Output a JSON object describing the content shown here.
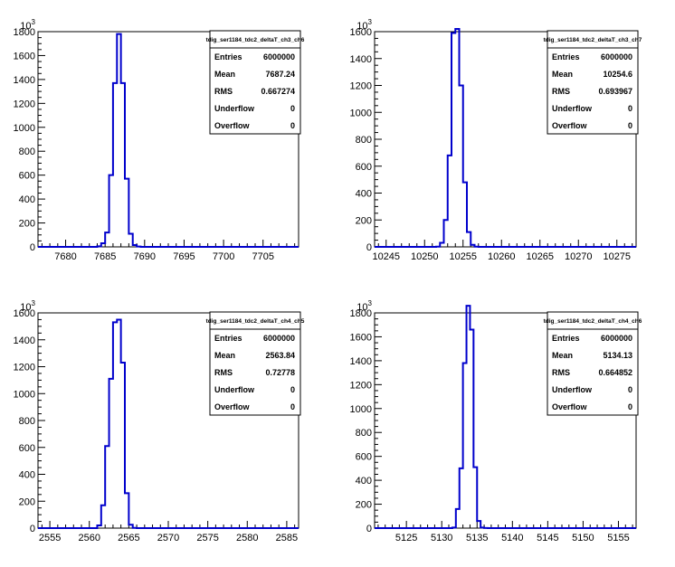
{
  "chart_data": [
    {
      "type": "bar",
      "title": "tdig_ser1184_tdc2_deltaT_ch3_ch6",
      "exponent_label": "10",
      "exponent_power": "3",
      "xlim": [
        7676.5,
        7709.5
      ],
      "ylim": [
        0,
        1800
      ],
      "x_ticks": [
        7680,
        7685,
        7690,
        7695,
        7700,
        7705
      ],
      "y_ticks": [
        0,
        200,
        400,
        600,
        800,
        1000,
        1200,
        1400,
        1600,
        1800
      ],
      "bin_edges": [
        7683.5,
        7684,
        7684.5,
        7685,
        7685.5,
        7686,
        7686.5,
        7687,
        7687.5,
        7688,
        7688.5,
        7689,
        7689.5,
        7690
      ],
      "values": [
        0,
        5,
        30,
        120,
        600,
        1370,
        1780,
        1370,
        570,
        110,
        15,
        3,
        0
      ],
      "stats": [
        {
          "label": "Entries",
          "value": "6000000"
        },
        {
          "label": "Mean",
          "value": "7687.24"
        },
        {
          "label": "RMS",
          "value": "0.667274"
        },
        {
          "label": "Underflow",
          "value": "0"
        },
        {
          "label": "Overflow",
          "value": "0"
        }
      ],
      "line_color": "#0000cc"
    },
    {
      "type": "bar",
      "title": "tdig_ser1184_tdc2_deltaT_ch3_ch7",
      "exponent_label": "10",
      "exponent_power": "3",
      "xlim": [
        10243.5,
        10277.5
      ],
      "ylim": [
        0,
        1600
      ],
      "x_ticks": [
        10245,
        10250,
        10255,
        10260,
        10265,
        10270,
        10275
      ],
      "y_ticks": [
        0,
        200,
        400,
        600,
        800,
        1000,
        1200,
        1400,
        1600
      ],
      "bin_edges": [
        10251.5,
        10252,
        10252.5,
        10253,
        10253.5,
        10254,
        10254.5,
        10255,
        10255.5,
        10256,
        10256.5,
        10257
      ],
      "values": [
        2,
        30,
        200,
        680,
        1590,
        1620,
        1200,
        480,
        110,
        15,
        2
      ],
      "stats": [
        {
          "label": "Entries",
          "value": "6000000"
        },
        {
          "label": "Mean",
          "value": "10254.6"
        },
        {
          "label": "RMS",
          "value": "0.693967"
        },
        {
          "label": "Underflow",
          "value": "0"
        },
        {
          "label": "Overflow",
          "value": "0"
        }
      ],
      "line_color": "#0000cc"
    },
    {
      "type": "bar",
      "title": "tdig_ser1184_tdc2_deltaT_ch4_ch5",
      "exponent_label": "10",
      "exponent_power": "3",
      "xlim": [
        2553.5,
        2586.5
      ],
      "ylim": [
        0,
        1600
      ],
      "x_ticks": [
        2555,
        2560,
        2565,
        2570,
        2575,
        2580,
        2585
      ],
      "y_ticks": [
        0,
        200,
        400,
        600,
        800,
        1000,
        1200,
        1400,
        1600
      ],
      "bin_edges": [
        2561,
        2561.5,
        2562,
        2562.5,
        2563,
        2563.5,
        2564,
        2564.5,
        2565,
        2565.5,
        2566
      ],
      "values": [
        20,
        170,
        610,
        1110,
        1530,
        1550,
        1230,
        260,
        25,
        2
      ],
      "stats": [
        {
          "label": "Entries",
          "value": "6000000"
        },
        {
          "label": "Mean",
          "value": "2563.84"
        },
        {
          "label": "RMS",
          "value": "0.72778"
        },
        {
          "label": "Underflow",
          "value": "0"
        },
        {
          "label": "Overflow",
          "value": "0"
        }
      ],
      "line_color": "#0000cc"
    },
    {
      "type": "bar",
      "title": "tdig_ser1184_tdc2_deltaT_ch4_ch6",
      "exponent_label": "10",
      "exponent_power": "3",
      "xlim": [
        5120.5,
        5157.5
      ],
      "ylim": [
        0,
        1800
      ],
      "x_ticks": [
        5125,
        5130,
        5135,
        5140,
        5145,
        5150,
        5155
      ],
      "y_ticks": [
        0,
        200,
        400,
        600,
        800,
        1000,
        1200,
        1400,
        1600,
        1800
      ],
      "bin_edges": [
        5131.5,
        5132,
        5132.5,
        5133,
        5133.5,
        5134,
        5134.5,
        5135,
        5135.5,
        5136,
        5136.5
      ],
      "values": [
        5,
        160,
        500,
        1380,
        1860,
        1660,
        510,
        60,
        5,
        1
      ],
      "stats": [
        {
          "label": "Entries",
          "value": "6000000"
        },
        {
          "label": "Mean",
          "value": "5134.13"
        },
        {
          "label": "RMS",
          "value": "0.664852"
        },
        {
          "label": "Underflow",
          "value": "0"
        },
        {
          "label": "Overflow",
          "value": "0"
        }
      ],
      "line_color": "#0000cc"
    }
  ]
}
